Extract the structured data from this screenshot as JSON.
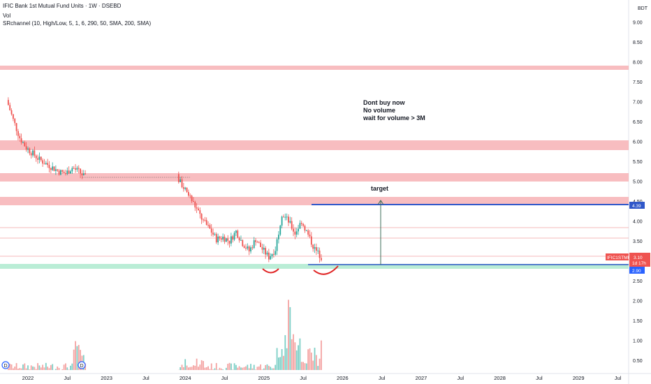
{
  "legend": {
    "title": "IFIC Bank 1st Mutual Fund Units · 1W · DSEBD",
    "vol": "Vol",
    "indicator": "SRchannel (10, High/Low, 5, 1, 6, 290, 50, SMA, 200, SMA)"
  },
  "currency": "BDT",
  "annotations": {
    "note_lines": [
      "Dont buy now",
      "No volume",
      "wait for volume >  3M"
    ],
    "target": "target"
  },
  "price_tags": {
    "symbol": "IFIC1STMF",
    "last": "3.10",
    "countdown": "1d 17h",
    "blue_level": "4.39",
    "support_level": "2.90"
  },
  "dividend_marker": "D",
  "colors": {
    "up": "#26a69a",
    "down": "#ef5350",
    "zone": "#f7b2b5",
    "support_zone": "#b2ebd2",
    "blue_line": "#2f57c9",
    "volume_up": "#7ccfc6",
    "volume_down": "#f4a3a2"
  },
  "chart_data": {
    "type": "candlestick",
    "y_ticks": [
      "9.00",
      "8.50",
      "8.00",
      "7.50",
      "7.00",
      "6.50",
      "6.00",
      "5.50",
      "5.00",
      "4.50",
      "4.00",
      "3.50",
      "3.00",
      "2.50",
      "2.00",
      "1.50",
      "1.00",
      "0.50"
    ],
    "x_ticks": [
      "2022",
      "Jul",
      "2023",
      "Jul",
      "2024",
      "Jul",
      "2025",
      "Jul",
      "2026",
      "Jul",
      "2027",
      "Jul",
      "2028",
      "Jul",
      "2029",
      "Jul"
    ],
    "price_range": [
      2.9,
      9.0
    ],
    "resistance_zones": [
      [
        7.82,
        7.88
      ],
      [
        5.85,
        6.0
      ],
      [
        5.0,
        5.18
      ],
      [
        4.39,
        4.58
      ]
    ],
    "support_zone": [
      2.86,
      2.93
    ],
    "thin_lines": [
      3.83,
      3.58,
      3.22
    ],
    "blue_level": 4.39,
    "support_level": 2.9,
    "last_price": 3.1,
    "price_path": [
      [
        "2021-10",
        7.05
      ],
      [
        "2021-11",
        6.55
      ],
      [
        "2021-12",
        6.1
      ],
      [
        "2022-01",
        5.85
      ],
      [
        "2022-02",
        5.7
      ],
      [
        "2022-03",
        5.55
      ],
      [
        "2022-04",
        5.45
      ],
      [
        "2022-05",
        5.35
      ],
      [
        "2022-06",
        5.25
      ],
      [
        "2022-07",
        5.2
      ],
      [
        "2022-08",
        5.35
      ],
      [
        "2022-09",
        5.25
      ],
      [
        "2022-10",
        5.1
      ],
      [
        "2023-12",
        5.1
      ],
      [
        "2024-01",
        4.85
      ],
      [
        "2024-02",
        4.6
      ],
      [
        "2024-03",
        4.3
      ],
      [
        "2024-04",
        4.0
      ],
      [
        "2024-05",
        3.8
      ],
      [
        "2024-06",
        3.55
      ],
      [
        "2024-07",
        3.6
      ],
      [
        "2024-08",
        3.5
      ],
      [
        "2024-09",
        3.75
      ],
      [
        "2024-10",
        3.45
      ],
      [
        "2024-11",
        3.25
      ],
      [
        "2024-12",
        3.55
      ],
      [
        "2025-01",
        3.3
      ],
      [
        "2025-02",
        3.1
      ],
      [
        "2025-03",
        3.3
      ],
      [
        "2025-04",
        4.2
      ],
      [
        "2025-05",
        4.0
      ],
      [
        "2025-06",
        3.7
      ],
      [
        "2025-07",
        4.0
      ],
      [
        "2025-08",
        3.65
      ],
      [
        "2025-09",
        3.3
      ],
      [
        "2025-10",
        3.1
      ]
    ],
    "volume_peak_millions": 2.25,
    "volume_axis_max": 2.5
  }
}
